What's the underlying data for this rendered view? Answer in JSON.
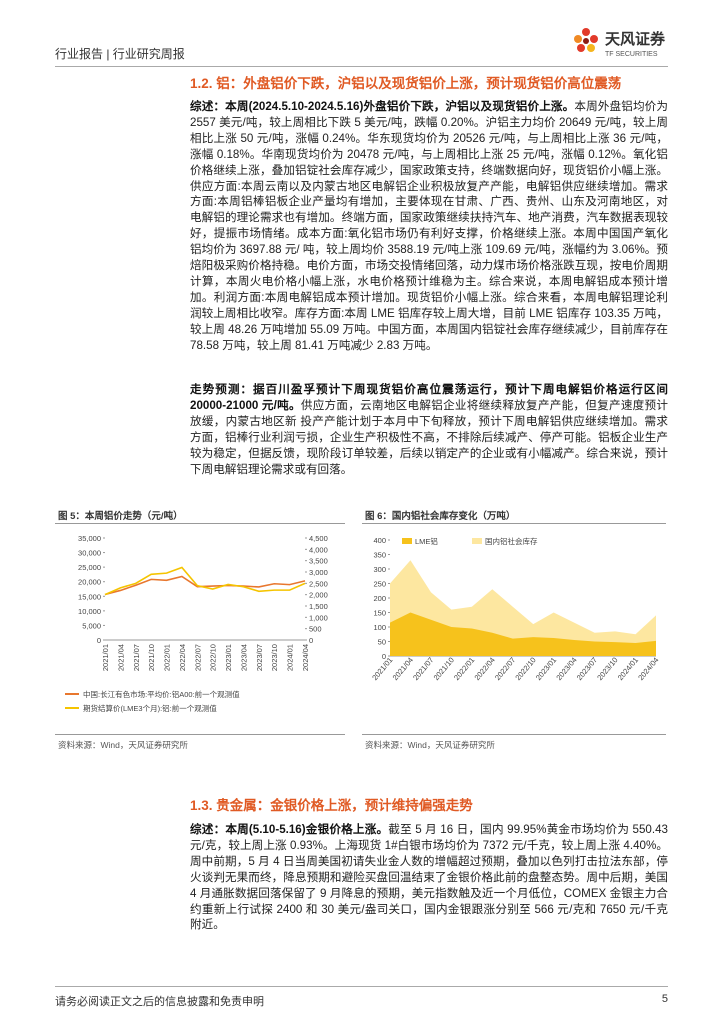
{
  "header": {
    "left": "行业报告 | 行业研究周报",
    "logo_cn": "天风证券",
    "logo_en": "TF SECURITIES"
  },
  "sections": [
    {
      "heading": "1.2. 铝：外盘铝价下跌，沪铝以及现货铝价上涨，预计现货铝价高位震荡",
      "paragraphs": [
        {
          "lead": "综述：本周(2024.5.10-2024.5.16)外盘铝价下跌，沪铝以及现货铝价上涨。",
          "text": "本周外盘铝均价为 2557 美元/吨，较上周相比下跌 5 美元/吨，跌幅 0.20%。沪铝主力均价 20649 元/吨，较上周相比上涨 50 元/吨，涨幅 0.24%。华东现货均价为 20526 元/吨，与上周相比上涨 36 元/吨，涨幅 0.18%。华南现货均价为 20478 元/吨，与上周相比上涨 25 元/吨，涨幅 0.12%。氧化铝价格继续上涨，叠加铝锭社会库存减少，国家政策支持，终端数据向好，现货铝价小幅上涨。供应方面:本周云南以及内蒙古地区电解铝企业积极放复产产能，电解铝供应继续增加。需求方面:本周铝棒铝板企业产量均有增加，主要体现在甘肃、广西、贵州、山东及河南地区，对电解铝的理论需求也有增加。终端方面，国家政策继续扶持汽车、地产消费，汽车数据表现较好，提振市场情绪。成本方面:氧化铝市场仍有利好支撑，价格继续上涨。本周中国国产氧化铝均价为 3697.88 元/ 吨，较上周均价 3588.19 元/吨上涨 109.69 元/吨，涨幅约为 3.06%。预焙阳极采购价格持稳。电价方面，市场交投情绪回落，动力煤市场价格涨跌互现，按电价周期计算，本周火电价格小幅上涨，水电价格预计维稳为主。综合来说，本周电解铝成本预计增加。利润方面:本周电解铝成本预计增加。现货铝价小幅上涨。综合来看，本周电解铝理论利润较上周相比收窄。库存方面:本周 LME 铝库存较上周大增，目前 LME 铝库存 103.35 万吨，较上周 48.26 万吨增加 55.09 万吨。中国方面，本周国内铝锭社会库存继续减少，目前库存在 78.58 万吨，较上周 81.41 万吨减少 2.83 万吨。"
        },
        {
          "lead": "走势预测：据百川盈孚预计下周现货铝价高位震荡运行，预计下周电解铝价格运行区间 20000-21000 元/吨。",
          "text": "供应方面，云南地区电解铝企业将继续释放复产产能，但复产速度预计放缓，内蒙古地区新 投产产能计划于本月中下旬释放，预计下周电解铝供应继续增加。需求方面，铝棒行业利润亏损，企业生产积极性不高，不排除后续减产、停产可能。铝板企业生产较为稳定，但据反馈，现阶段订单较差，后续以销定产的企业或有小幅减产。综合来说，预计下周电解铝理论需求或有回落。"
        }
      ]
    },
    {
      "heading": "1.3. 贵金属：金银价格上涨，预计维持偏强走势",
      "paragraphs": [
        {
          "lead": "综述：本周(5.10-5.16)金银价格上涨。",
          "text": "截至 5 月 16 日，国内 99.95%黄金市场均价为 550.43 元/克，较上周上涨 0.93%。上海现货 1#白银市场均价为 7372 元/千克，较上周上涨 4.40%。周中前期，5 月 4 日当周美国初请失业金人数的增幅超过预期，叠加以色列打击拉法东部，停火谈判无果而终，降息预期和避险买盘回温结束了金银价格此前的盘整态势。周中后期，美国 4 月通胀数据回落保留了 9 月降息的预期，美元指数触及近一个月低位，COMEX 金银主力合约重新上行试探 2400 和 30 美元/盎司关口，国内金银跟涨分别至 566 元/克和 7650 元/千克附近。"
        }
      ]
    }
  ],
  "figures": [
    {
      "title": "图 5：本周铝价走势（元/吨）",
      "source": "资料来源：Wind，天风证券研究所",
      "chart_data": {
        "type": "line",
        "categories": [
          "2021/01",
          "2021/04",
          "2021/07",
          "2021/10",
          "2022/01",
          "2022/04",
          "2022/07",
          "2022/10",
          "2023/01",
          "2023/04",
          "2023/07",
          "2023/10",
          "2024/01",
          "2024/04"
        ],
        "series": [
          {
            "name": "中国:长江有色市场:平均价:铝A00:前一个观测值",
            "color": "#e8772e",
            "values": [
              15600,
              17000,
              18800,
              20800,
              20500,
              21800,
              18300,
              18500,
              18700,
              18500,
              18200,
              19300,
              19000,
              20300
            ]
          },
          {
            "name": "期货结算价(LME3个月):铝:前一个观测值",
            "color": "#f5c400",
            "axis": "y2",
            "values": [
              2000,
              2300,
              2500,
              2900,
              2950,
              3200,
              2400,
              2250,
              2450,
              2350,
              2150,
              2200,
              2200,
              2500
            ]
          }
        ],
        "ylim": [
          0,
          35000
        ],
        "yticks": [
          0,
          {
            "value": 5000,
            "label": "5,000"
          },
          {
            "value": 10000,
            "label": "10,000"
          },
          {
            "value": 15000,
            "label": "15,000"
          },
          {
            "value": 20000,
            "label": "20,000"
          },
          {
            "value": 25000,
            "label": "25,000"
          },
          {
            "value": 30000,
            "label": "30,000"
          },
          {
            "value": 35000,
            "label": "35,000"
          }
        ],
        "y2lim": [
          0,
          4500
        ],
        "y2ticks": [
          0,
          500,
          {
            "value": 1000,
            "label": "1,000"
          },
          {
            "value": 1500,
            "label": "1,500"
          },
          {
            "value": 2000,
            "label": "2,000"
          },
          {
            "value": 2500,
            "label": "2,500"
          },
          {
            "value": 3000,
            "label": "3,000"
          },
          {
            "value": 3500,
            "label": "3,500"
          },
          {
            "value": 4000,
            "label": "4,000"
          },
          {
            "value": 4500,
            "label": "4,500"
          }
        ],
        "grid": false,
        "legend": "bottom"
      }
    },
    {
      "title": "图 6：国内铝社会库存变化（万吨）",
      "source": "资料来源：Wind，天风证券研究所",
      "chart_data": {
        "type": "area",
        "categories": [
          "2021/01",
          "2021/04",
          "2021/07",
          "2021/10",
          "2022/01",
          "2022/04",
          "2022/07",
          "2022/10",
          "2023/01",
          "2023/04",
          "2023/07",
          "2023/10",
          "2024/01",
          "2024/04"
        ],
        "series": [
          {
            "name": "LME铝",
            "color": "#f6c21c",
            "values": [
              115,
              150,
              125,
              100,
              95,
              80,
              60,
              65,
              62,
              55,
              50,
              48,
              45,
              52
            ]
          },
          {
            "name": "国内铝社会库存",
            "color": "#fde7a0",
            "values": [
              250,
              330,
              220,
              160,
              170,
              230,
              170,
              110,
              150,
              115,
              80,
              85,
              75,
              140
            ]
          }
        ],
        "ylim": [
          0,
          400
        ],
        "yticks": [
          0,
          50,
          100,
          150,
          200,
          250,
          300,
          350,
          400
        ],
        "grid": false,
        "legend": "top"
      }
    }
  ],
  "footer": {
    "disclaimer": "请务必阅读正文之后的信息披露和免责申明",
    "page": 5
  }
}
